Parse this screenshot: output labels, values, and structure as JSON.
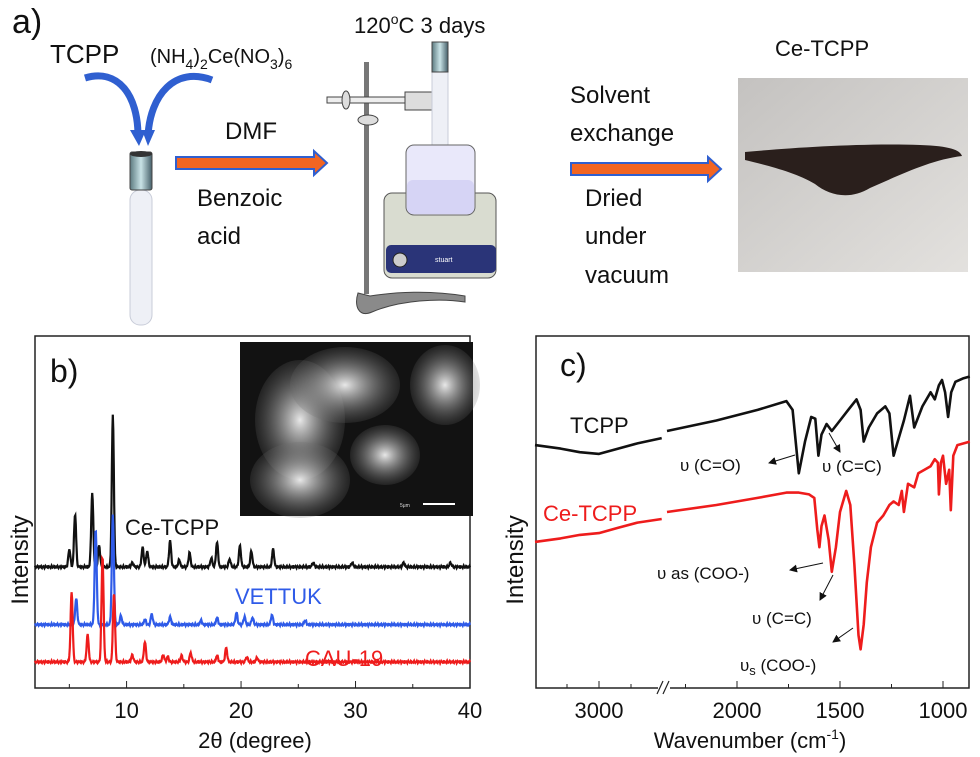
{
  "panel_a": {
    "label": "a)",
    "reactant1": "TCPP",
    "reactant2_parts": [
      {
        "t": "(NH",
        "sub": false
      },
      {
        "t": "4",
        "sub": true
      },
      {
        "t": ")",
        "sub": false
      },
      {
        "t": "2",
        "sub": true
      },
      {
        "t": "Ce(NO",
        "sub": false
      },
      {
        "t": "3",
        "sub": true
      },
      {
        "t": ")",
        "sub": false
      },
      {
        "t": "6",
        "sub": true
      }
    ],
    "step1_above": "DMF",
    "step1_below": [
      "Benzoic",
      "acid"
    ],
    "condition_main": "120",
    "condition_sup": "o",
    "condition_rest": "C 3 days",
    "step2_above": [
      "Solvent",
      "exchange"
    ],
    "step2_below": [
      "Dried",
      "under",
      "vacuum"
    ],
    "product": "Ce-TCPP",
    "hotplate_brand": "stuart",
    "sem_scale": "5μm",
    "colors": {
      "arrow_fill": "#f26522",
      "arrow_outline": "#2f5fd0",
      "curved_arrow": "#2f5fd0"
    }
  },
  "chart_data": [
    {
      "panel_label": "b)",
      "type": "line",
      "xlabel": "2θ (degree)",
      "ylabel": "Intensity",
      "xlim": [
        2,
        40
      ],
      "xticks": [
        10,
        20,
        30,
        40
      ],
      "yticks": [],
      "grid": false,
      "legend": "inline labels",
      "series": [
        {
          "name": "Ce-TCPP",
          "color": "#111111",
          "baseline": 34.4,
          "peaks": [
            [
              5.0,
              5
            ],
            [
              5.5,
              15
            ],
            [
              7.0,
              21
            ],
            [
              7.6,
              6
            ],
            [
              8.8,
              43
            ],
            [
              10.5,
              1.2
            ],
            [
              11.4,
              5.5
            ],
            [
              11.8,
              4.5
            ],
            [
              13.8,
              7.4
            ],
            [
              14.6,
              2
            ],
            [
              15.5,
              4
            ],
            [
              17.4,
              2.5
            ],
            [
              17.9,
              7
            ],
            [
              19.0,
              2.2
            ],
            [
              19.9,
              6
            ],
            [
              20.9,
              4.5
            ],
            [
              22.8,
              5
            ],
            [
              26.3,
              1.2
            ],
            [
              29.7,
              1.2
            ],
            [
              34.2,
              1.2
            ],
            [
              38.3,
              1.2
            ]
          ]
        },
        {
          "name": "VETTUK",
          "color": "#2f5be8",
          "baseline": 18.0,
          "peaks": [
            [
              5.6,
              7.4
            ],
            [
              7.3,
              27
            ],
            [
              8.8,
              31
            ],
            [
              9.5,
              2.5
            ],
            [
              11.6,
              1.5
            ],
            [
              12.2,
              3
            ],
            [
              13.8,
              2.2
            ],
            [
              16.5,
              1.2
            ],
            [
              17.9,
              2
            ],
            [
              19.6,
              3.4
            ],
            [
              20.3,
              2.2
            ],
            [
              21.0,
              2
            ],
            [
              22.7,
              2.8
            ],
            [
              25.6,
              1.2
            ]
          ]
        },
        {
          "name": "CAU-19",
          "color": "#ee1c1c",
          "baseline": 7.4,
          "peaks": [
            [
              5.2,
              20
            ],
            [
              6.6,
              7.7
            ],
            [
              7.9,
              30
            ],
            [
              8.9,
              19.6
            ],
            [
              10.5,
              2
            ],
            [
              11.6,
              5.7
            ],
            [
              13.2,
              2
            ],
            [
              13.6,
              1.5
            ],
            [
              14.8,
              1.8
            ],
            [
              15.6,
              2.6
            ],
            [
              17.9,
              1.8
            ],
            [
              18.7,
              4
            ],
            [
              20.5,
              1.4
            ],
            [
              21.4,
              1.2
            ]
          ]
        }
      ],
      "inset": "SEM image"
    },
    {
      "panel_label": "c)",
      "type": "line",
      "xlabel": "Wavenumber (cm",
      "xlabel_sup": "-1",
      "xlabel_end": ")",
      "ylabel": "Intensity",
      "x_reversed": true,
      "x_axis_break": [
        2500,
        2350
      ],
      "xlim": [
        3500,
        870
      ],
      "xticks": [
        3000,
        2000,
        1500,
        1000
      ],
      "grid": false,
      "series": [
        {
          "name": "TCPP",
          "color": "#111111",
          "points": [
            [
              3500,
              69
            ],
            [
              3300,
              68
            ],
            [
              3150,
              67
            ],
            [
              3000,
              66.5
            ],
            [
              2850,
              68
            ],
            [
              2700,
              69.5
            ],
            [
              2510,
              71
            ],
            [
              2340,
              73
            ],
            [
              2100,
              76
            ],
            [
              1900,
              79
            ],
            [
              1760,
              81.5
            ],
            [
              1730,
              79
            ],
            [
              1700,
              61
            ],
            [
              1670,
              70
            ],
            [
              1640,
              77
            ],
            [
              1620,
              76.5
            ],
            [
              1605,
              66
            ],
            [
              1590,
              72
            ],
            [
              1565,
              75
            ],
            [
              1540,
              73
            ],
            [
              1500,
              76
            ],
            [
              1460,
              79
            ],
            [
              1420,
              82
            ],
            [
              1400,
              79
            ],
            [
              1385,
              70
            ],
            [
              1360,
              74
            ],
            [
              1320,
              78
            ],
            [
              1280,
              80
            ],
            [
              1260,
              78
            ],
            [
              1240,
              66
            ],
            [
              1220,
              70
            ],
            [
              1190,
              76
            ],
            [
              1160,
              83
            ],
            [
              1140,
              74
            ],
            [
              1100,
              80
            ],
            [
              1060,
              84
            ],
            [
              1040,
              82
            ],
            [
              1020,
              86
            ],
            [
              1005,
              87.5
            ],
            [
              990,
              84
            ],
            [
              975,
              77
            ],
            [
              960,
              84
            ],
            [
              940,
              87
            ],
            [
              900,
              88
            ],
            [
              870,
              88.5
            ]
          ]
        },
        {
          "name": "Ce-TCPP",
          "color": "#ee1c1c",
          "points": [
            [
              3500,
              41.5
            ],
            [
              3300,
              42.5
            ],
            [
              3150,
              43.5
            ],
            [
              3000,
              44
            ],
            [
              2850,
              45.5
            ],
            [
              2700,
              47
            ],
            [
              2510,
              48
            ],
            [
              2340,
              50
            ],
            [
              2100,
              52
            ],
            [
              1900,
              54
            ],
            [
              1760,
              55.5
            ],
            [
              1700,
              55.5
            ],
            [
              1650,
              55
            ],
            [
              1625,
              54
            ],
            [
              1610,
              45
            ],
            [
              1600,
              40
            ],
            [
              1590,
              46
            ],
            [
              1575,
              49
            ],
            [
              1555,
              42
            ],
            [
              1540,
              33
            ],
            [
              1520,
              40
            ],
            [
              1500,
              50
            ],
            [
              1470,
              56
            ],
            [
              1450,
              52
            ],
            [
              1430,
              35
            ],
            [
              1410,
              15
            ],
            [
              1400,
              11
            ],
            [
              1385,
              18
            ],
            [
              1370,
              30
            ],
            [
              1350,
              40
            ],
            [
              1320,
              47
            ],
            [
              1290,
              49
            ],
            [
              1260,
              52
            ],
            [
              1240,
              53
            ],
            [
              1215,
              52
            ],
            [
              1200,
              56
            ],
            [
              1190,
              50
            ],
            [
              1170,
              58
            ],
            [
              1140,
              57
            ],
            [
              1120,
              61
            ],
            [
              1090,
              62
            ],
            [
              1060,
              63
            ],
            [
              1040,
              65
            ],
            [
              1025,
              64
            ],
            [
              1020,
              55
            ],
            [
              1010,
              64
            ],
            [
              1000,
              66
            ],
            [
              985,
              58
            ],
            [
              970,
              62
            ],
            [
              962,
              50.5
            ],
            [
              950,
              66
            ],
            [
              930,
              69
            ],
            [
              900,
              69.5
            ],
            [
              870,
              70
            ]
          ]
        }
      ],
      "annotations": [
        {
          "text": "υ (C=O)",
          "sub": "",
          "rest": ""
        },
        {
          "text": "υ (C=C)",
          "sub": "",
          "rest": ""
        },
        {
          "text": "υ as (COO-)",
          "sub": "",
          "rest": ""
        },
        {
          "text": "υ (C=C)",
          "sub": "",
          "rest": ""
        },
        {
          "text": "υ",
          "sub": "s",
          "rest": " (COO-)"
        }
      ]
    }
  ]
}
